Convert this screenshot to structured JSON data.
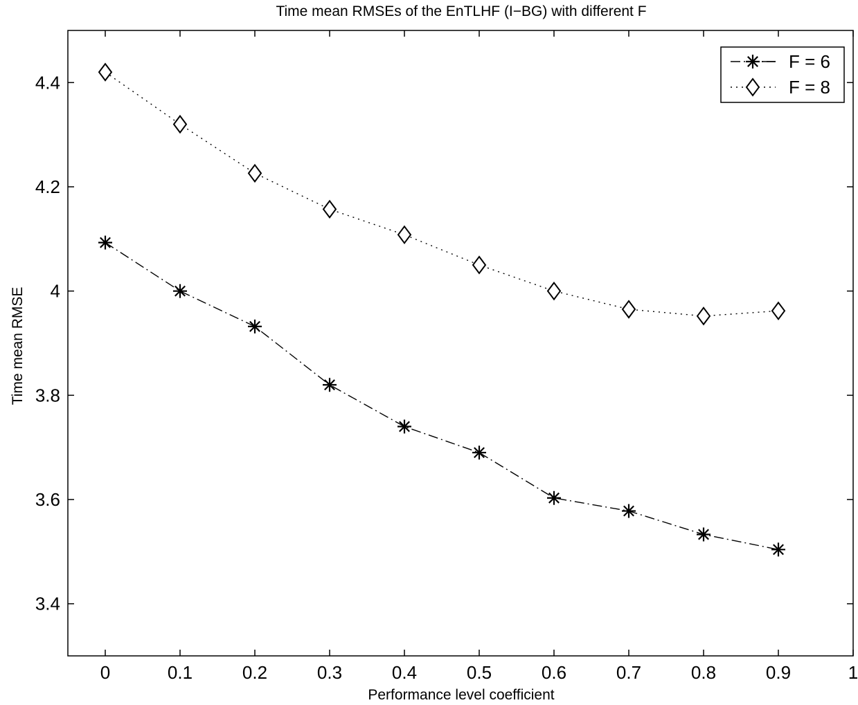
{
  "chart_data": {
    "type": "line",
    "title": "Time mean RMSEs of the EnTLHF (I−BG) with different F",
    "xlabel": "Performance level coefficient",
    "ylabel": "Time mean RMSE",
    "xlim": [
      -0.05,
      1
    ],
    "ylim": [
      3.3,
      4.5
    ],
    "xticks": [
      0,
      0.1,
      0.2,
      0.3,
      0.4,
      0.5,
      0.6,
      0.7,
      0.8,
      0.9,
      1
    ],
    "xtick_labels": [
      "0",
      "0.1",
      "0.2",
      "0.3",
      "0.4",
      "0.5",
      "0.6",
      "0.7",
      "0.8",
      "0.9",
      "1"
    ],
    "yticks": [
      3.4,
      3.6,
      3.8,
      4.0,
      4.2,
      4.4
    ],
    "ytick_labels": [
      "3.4",
      "3.6",
      "3.8",
      "4",
      "4.2",
      "4.4"
    ],
    "grid": false,
    "legend_position": "top-right",
    "x": [
      0,
      0.1,
      0.2,
      0.3,
      0.4,
      0.5,
      0.6,
      0.7,
      0.8,
      0.9
    ],
    "series": [
      {
        "name": "F = 6",
        "marker": "asterisk",
        "line_style": "dash-dot",
        "color": "#000000",
        "values": [
          4.093,
          4.0,
          3.932,
          3.82,
          3.74,
          3.69,
          3.603,
          3.578,
          3.533,
          3.504
        ]
      },
      {
        "name": "F = 8",
        "marker": "diamond",
        "line_style": "dotted",
        "color": "#000000",
        "values": [
          4.42,
          4.32,
          4.226,
          4.157,
          4.108,
          4.05,
          4.0,
          3.965,
          3.952,
          3.962
        ]
      }
    ]
  }
}
